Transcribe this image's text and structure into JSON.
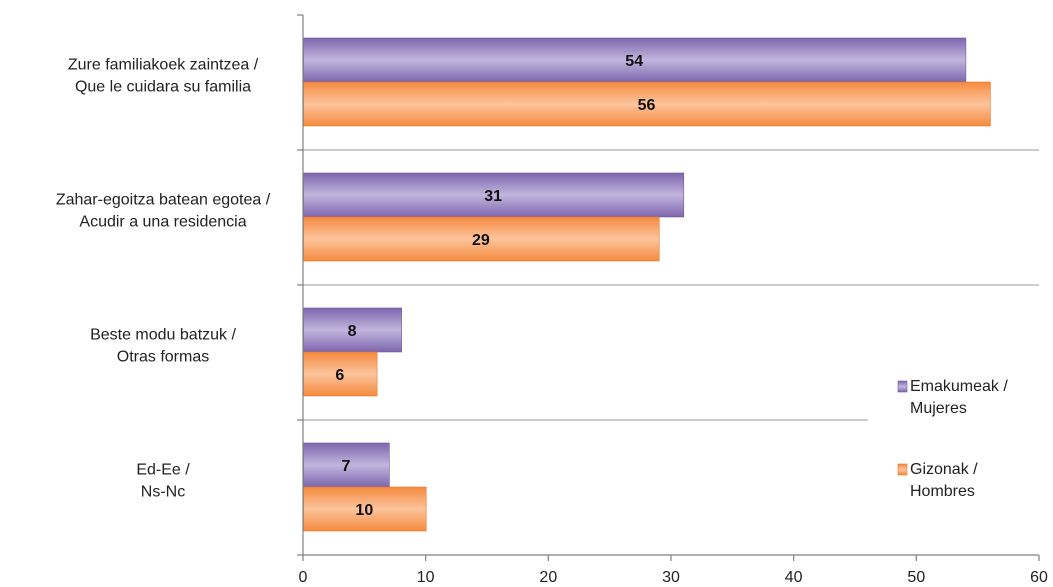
{
  "chart_data": {
    "type": "bar",
    "orientation": "horizontal",
    "categories": [
      [
        "Zure familiakoek zaintzea /",
        "Que le cuidara su familia"
      ],
      [
        "Zahar-egoitza batean egotea /",
        "Acudir a una residencia"
      ],
      [
        "Beste modu batzuk /",
        "Otras formas"
      ],
      [
        "Ed-Ee /",
        "Ns-Nc"
      ]
    ],
    "series": [
      {
        "name": [
          "Emakumeak /",
          "Mujeres"
        ],
        "values": [
          54,
          31,
          8,
          7
        ],
        "color": "#9B86C0",
        "edge": "#6F5A9C"
      },
      {
        "name": [
          "Gizonak /",
          "Hombres"
        ],
        "values": [
          56,
          29,
          6,
          10
        ],
        "color": "#F9A46A",
        "edge": "#E07A30"
      }
    ],
    "xlim": [
      0,
      60
    ],
    "xticks": [
      "0",
      "10",
      "20",
      "30",
      "40",
      "50",
      "60"
    ],
    "grid": "horizontal separators between categories",
    "legend": "right",
    "data_labels": true
  }
}
